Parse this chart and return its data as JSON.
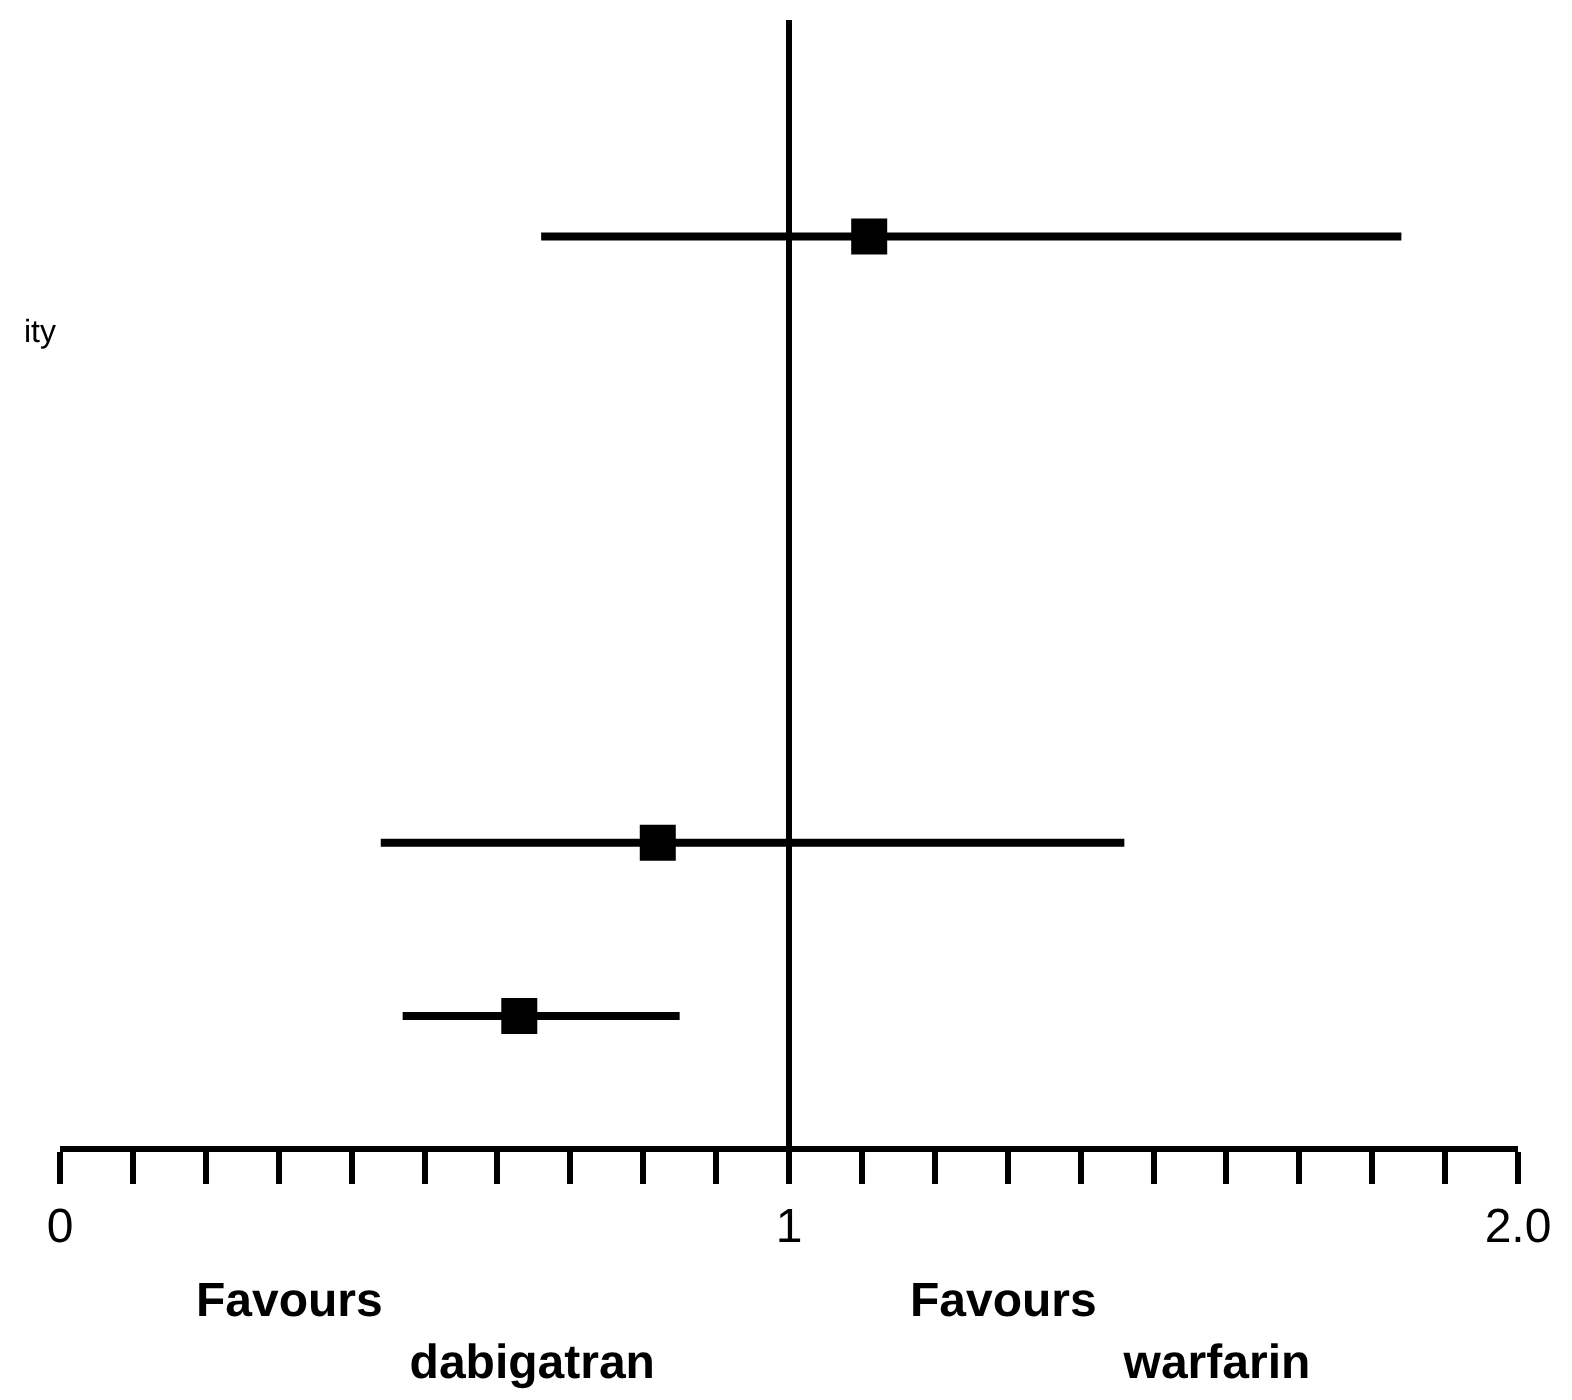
{
  "chart_data": {
    "type": "scatter",
    "orientation": "horizontal",
    "categories": [
      null,
      null,
      null,
      null,
      null,
      null,
      null,
      null,
      null,
      null,
      null,
      null,
      null
    ],
    "values": [
      null,
      null,
      1.11,
      null,
      null,
      null,
      null,
      null,
      null,
      0.82,
      null,
      0.63,
      null
    ],
    "errors": [
      null,
      null,
      [
        0.66,
        1.84
      ],
      null,
      null,
      null,
      null,
      null,
      null,
      [
        0.44,
        1.46
      ],
      null,
      [
        0.47,
        0.85
      ],
      null
    ],
    "color": "#000000",
    "marker": "square",
    "xlim": [
      0,
      2
    ],
    "xticks": [
      0,
      {
        "value": 0.1,
        "label": null
      },
      {
        "value": 0.2,
        "label": null
      },
      {
        "value": 0.3,
        "label": null
      },
      {
        "value": 0.4,
        "label": null
      },
      {
        "value": 0.5,
        "label": null
      },
      {
        "value": 0.6,
        "label": null
      },
      {
        "value": 0.7,
        "label": null
      },
      {
        "value": 0.8,
        "label": null
      },
      {
        "value": 0.9,
        "label": null
      },
      1,
      {
        "value": 1.1,
        "label": null
      },
      {
        "value": 1.2,
        "label": null
      },
      {
        "value": 1.3,
        "label": null
      },
      {
        "value": 1.4,
        "label": null
      },
      {
        "value": 1.5,
        "label": null
      },
      {
        "value": 1.6,
        "label": null
      },
      {
        "value": 1.7,
        "label": null
      },
      {
        "value": 1.8,
        "label": null
      },
      {
        "value": 1.9,
        "label": null
      },
      {
        "value": 2,
        "label": "2.0"
      }
    ],
    "ref_lines": [
      {
        "axis": "x",
        "value": 1,
        "color": "#000000"
      }
    ],
    "tick_labels": "x",
    "annotations": [
      "ity",
      "Favours\ndabigatran",
      "Favours\nwarfarin"
    ]
  }
}
